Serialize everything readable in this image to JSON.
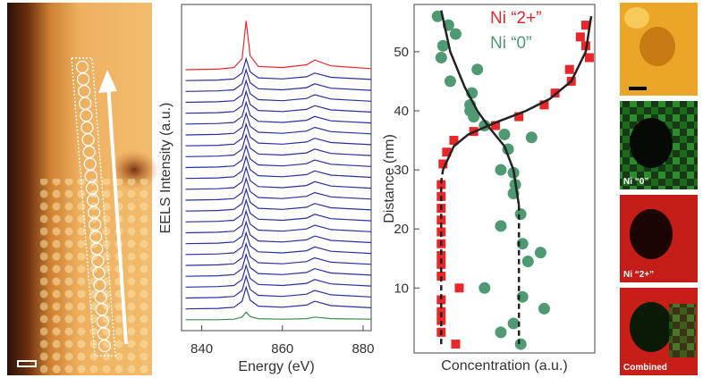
{
  "chart_data": [
    {
      "type": "line",
      "x_label": "Energy (eV)",
      "y_label": "EELS Intensity (a.u.)",
      "x": [
        836,
        844,
        848,
        850,
        851,
        852,
        854,
        860,
        866,
        868,
        872,
        882
      ],
      "xlim": [
        835,
        882
      ],
      "ylim": [
        0,
        30
      ],
      "xticks": [
        840,
        860,
        880
      ],
      "series": [
        {
          "color": "#3d8a55",
          "values": [
            1,
            1,
            1.05,
            1.25,
            1.7,
            1.3,
            1.1,
            1.05,
            1.1,
            1.25,
            1.1,
            1.05
          ]
        },
        {
          "color": "#2b2f9e",
          "values": [
            2,
            2.05,
            2.15,
            2.7,
            4,
            2.8,
            2.25,
            2.15,
            2.35,
            2.7,
            2.3,
            2.1
          ]
        },
        {
          "color": "#2b2f9e",
          "values": [
            3,
            3.05,
            3.15,
            3.7,
            5,
            3.8,
            3.25,
            3.15,
            3.35,
            3.7,
            3.3,
            3.1
          ]
        },
        {
          "color": "#2b2f9e",
          "values": [
            4,
            4.05,
            4.15,
            4.7,
            6,
            4.8,
            4.25,
            4.15,
            4.35,
            4.7,
            4.3,
            4.1
          ]
        },
        {
          "color": "#2b2f9e",
          "values": [
            5,
            5.05,
            5.15,
            5.7,
            7,
            5.8,
            5.25,
            5.15,
            5.35,
            5.7,
            5.3,
            5.1
          ]
        },
        {
          "color": "#2b2f9e",
          "values": [
            6,
            6.05,
            6.15,
            6.7,
            8,
            6.8,
            6.25,
            6.15,
            6.35,
            6.7,
            6.3,
            6.1
          ]
        },
        {
          "color": "#2b2f9e",
          "values": [
            7,
            7.05,
            7.15,
            7.7,
            9,
            7.8,
            7.25,
            7.15,
            7.35,
            7.7,
            7.3,
            7.1
          ]
        },
        {
          "color": "#2b2f9e",
          "values": [
            8,
            8.05,
            8.15,
            8.7,
            10,
            8.8,
            8.25,
            8.15,
            8.35,
            8.7,
            8.3,
            8.1
          ]
        },
        {
          "color": "#2b2f9e",
          "values": [
            9,
            9.05,
            9.15,
            9.7,
            11,
            9.8,
            9.25,
            9.15,
            9.35,
            9.7,
            9.3,
            9.1
          ]
        },
        {
          "color": "#2b2f9e",
          "values": [
            10,
            10.05,
            10.15,
            10.7,
            12,
            10.8,
            10.25,
            10.15,
            10.35,
            10.7,
            10.3,
            10.1
          ]
        },
        {
          "color": "#2b2f9e",
          "values": [
            11,
            11.05,
            11.15,
            11.7,
            13,
            11.8,
            11.25,
            11.15,
            11.35,
            11.7,
            11.3,
            11.1
          ]
        },
        {
          "color": "#2b2f9e",
          "values": [
            12,
            12.05,
            12.15,
            12.7,
            14,
            12.8,
            12.25,
            12.15,
            12.35,
            12.7,
            12.3,
            12.1
          ]
        },
        {
          "color": "#2b2f9e",
          "values": [
            13,
            13.05,
            13.15,
            13.7,
            15,
            13.8,
            13.25,
            13.15,
            13.35,
            13.7,
            13.3,
            13.1
          ]
        },
        {
          "color": "#2b2f9e",
          "values": [
            14,
            14.05,
            14.15,
            14.7,
            16,
            14.8,
            14.25,
            14.15,
            14.35,
            14.7,
            14.3,
            14.1
          ]
        },
        {
          "color": "#2b2f9e",
          "values": [
            15,
            15.05,
            15.15,
            15.7,
            17,
            15.8,
            15.25,
            15.15,
            15.35,
            15.7,
            15.3,
            15.1
          ]
        },
        {
          "color": "#2b2f9e",
          "values": [
            16,
            16.05,
            16.15,
            16.7,
            18,
            16.8,
            16.25,
            16.15,
            16.35,
            16.7,
            16.3,
            16.1
          ]
        },
        {
          "color": "#2b2f9e",
          "values": [
            17,
            17.05,
            17.15,
            17.7,
            19,
            17.8,
            17.25,
            17.15,
            17.35,
            17.7,
            17.3,
            17.1
          ]
        },
        {
          "color": "#2b2f9e",
          "values": [
            18,
            18.05,
            18.15,
            18.7,
            20,
            18.8,
            18.25,
            18.15,
            18.35,
            18.7,
            18.3,
            18.1
          ]
        },
        {
          "color": "#2b2f9e",
          "values": [
            19,
            19.05,
            19.15,
            19.7,
            21,
            19.8,
            19.25,
            19.15,
            19.35,
            19.7,
            19.3,
            19.1
          ]
        },
        {
          "color": "#2b2f9e",
          "values": [
            20,
            20.05,
            20.15,
            20.7,
            22,
            20.8,
            20.25,
            20.15,
            20.35,
            20.7,
            20.3,
            20.1
          ]
        },
        {
          "color": "#2b2f9e",
          "values": [
            21,
            21.05,
            21.15,
            21.7,
            23,
            21.8,
            21.25,
            21.15,
            21.35,
            21.7,
            21.3,
            21.1
          ]
        },
        {
          "color": "#2b2f9e",
          "values": [
            22,
            22.05,
            22.15,
            22.7,
            24,
            22.8,
            22.25,
            22.15,
            22.35,
            22.7,
            22.3,
            22.1
          ]
        },
        {
          "color": "#2b2f9e",
          "values": [
            23,
            23.05,
            23.15,
            23.7,
            25,
            23.8,
            23.25,
            23.15,
            23.35,
            23.7,
            23.3,
            23.1
          ]
        },
        {
          "color": "#e8272a",
          "values": [
            24,
            24.05,
            24.2,
            25,
            28.5,
            25.3,
            24.3,
            24.2,
            24.45,
            24.9,
            24.35,
            24.1
          ]
        }
      ]
    },
    {
      "type": "scatter",
      "x_label": "Concentration (a.u.)",
      "y_label": "Distance (nm)",
      "xlim": [
        0,
        1
      ],
      "ylim": [
        -1,
        58
      ],
      "yticks": [
        10,
        20,
        30,
        40,
        50
      ],
      "series": [
        {
          "name": "Ni “2+”",
          "color": "#e8272a",
          "marker": "square",
          "x": [
            0.23,
            0.15,
            0.15,
            0.15,
            0.15,
            0.25,
            0.15,
            0.15,
            0.15,
            0.15,
            0.15,
            0.15,
            0.15,
            0.15,
            0.15,
            0.16,
            0.18,
            0.22,
            0.33,
            0.45,
            0.58,
            0.72,
            0.78,
            0.87,
            0.86,
            0.97,
            0.95,
            0.92,
            0.95
          ],
          "values": [
            0.5,
            2.5,
            4.5,
            6,
            8,
            10,
            12,
            14,
            15.5,
            17.5,
            19.5,
            21.5,
            23.5,
            25.5,
            27.5,
            31,
            33,
            35,
            36.5,
            37.5,
            39,
            41,
            43,
            45,
            47,
            49,
            51,
            52.5,
            54.5
          ]
        },
        {
          "name": "Ni “0”",
          "color": "#4f9a73",
          "marker": "circle",
          "x": [
            0.13,
            0.19,
            0.23,
            0.16,
            0.15,
            0.35,
            0.2,
            0.32,
            0.31,
            0.31,
            0.33,
            0.39,
            0.5,
            0.52,
            0.65,
            0.48,
            0.55,
            0.56,
            0.55,
            0.59,
            0.48,
            0.6,
            0.7,
            0.63,
            0.39,
            0.6,
            0.72,
            0.55,
            0.48,
            0.59
          ],
          "values": [
            56,
            54.5,
            53,
            51,
            49,
            47,
            45,
            43,
            41,
            40,
            39,
            37.5,
            36,
            33.5,
            35.5,
            30,
            29.5,
            27.5,
            26,
            22.5,
            20.5,
            17.5,
            16,
            14.5,
            10,
            8.5,
            6.5,
            4,
            2.5,
            0.5
          ]
        },
        {
          "color": "#222222",
          "marker": "line",
          "dash": true,
          "x": [
            0.15,
            0.15,
            0.16
          ],
          "values": [
            0.5,
            28,
            30
          ]
        },
        {
          "color": "#222222",
          "marker": "line",
          "dash": false,
          "x": [
            0.16,
            0.22,
            0.3,
            0.45,
            0.62,
            0.75,
            0.87,
            0.95,
            0.98
          ],
          "values": [
            30,
            34,
            36,
            38,
            40,
            42,
            45,
            50,
            56
          ]
        },
        {
          "color": "#222222",
          "marker": "line",
          "dash": true,
          "x": [
            0.58,
            0.58
          ],
          "values": [
            24,
            0.5
          ]
        },
        {
          "color": "#222222",
          "marker": "line",
          "dash": false,
          "x": [
            0.15,
            0.2,
            0.28,
            0.35,
            0.42,
            0.5,
            0.55,
            0.57,
            0.58
          ],
          "values": [
            57,
            50,
            44,
            40,
            37,
            34,
            30,
            26,
            24
          ]
        }
      ]
    }
  ],
  "maps": {
    "labels": [
      "Ni “0”",
      "Ni “2+”",
      "Combined"
    ]
  }
}
